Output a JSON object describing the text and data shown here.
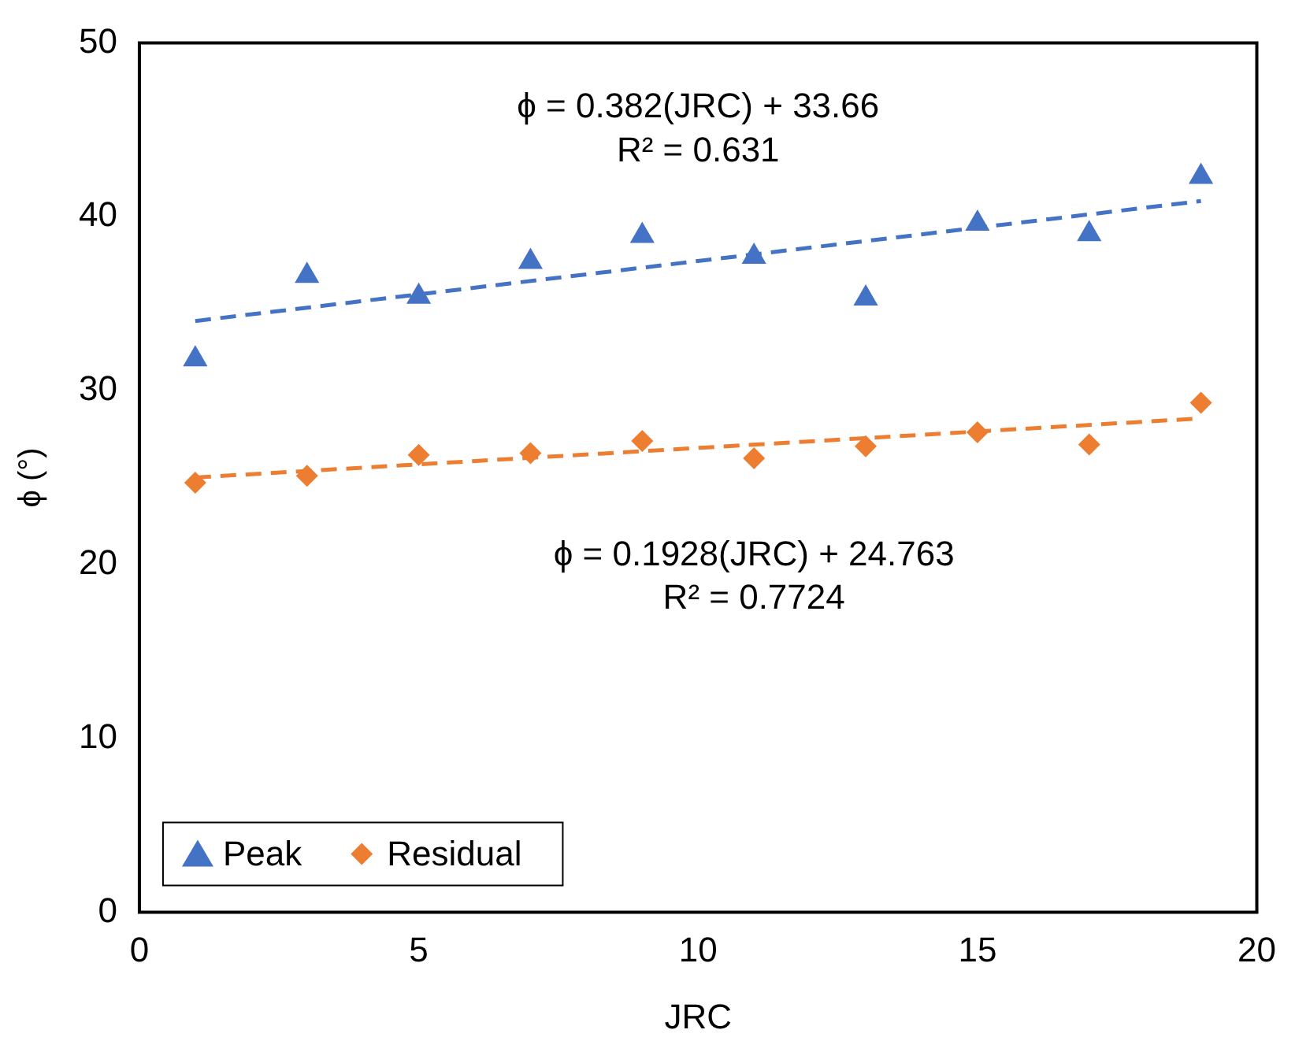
{
  "chart_data": {
    "type": "scatter",
    "xlabel": "JRC",
    "ylabel": "ϕ (°)",
    "xlim": [
      0,
      20
    ],
    "xticks": [
      0,
      5,
      10,
      15,
      20
    ],
    "ylim": [
      0,
      50
    ],
    "yticks": [
      0,
      10,
      20,
      30,
      40,
      50
    ],
    "grid": false,
    "legend": "bottom left",
    "series": [
      {
        "name": "Peak",
        "color": "#4472c4",
        "marker": "triangle",
        "x": [
          1,
          3,
          5,
          7,
          9,
          11,
          13,
          15,
          17,
          19
        ],
        "values": [
          31.8,
          36.6,
          35.4,
          37.4,
          38.9,
          37.7,
          35.3,
          39.6,
          39.0,
          42.3
        ]
      },
      {
        "name": "Residual",
        "color": "#ed7d31",
        "marker": "diamond",
        "x": [
          1,
          3,
          5,
          7,
          9,
          11,
          13,
          15,
          17,
          19
        ],
        "values": [
          24.7,
          25.1,
          26.3,
          26.4,
          27.1,
          26.1,
          26.8,
          27.6,
          26.9,
          29.3
        ]
      },
      {
        "type": "line",
        "color": "#4472c4",
        "marker": "none",
        "line_style": "dashed",
        "x": [
          1,
          19
        ],
        "values": [
          34.0,
          40.9
        ]
      },
      {
        "type": "line",
        "color": "#ed7d31",
        "marker": "none",
        "line_style": "dashed",
        "x": [
          1,
          19
        ],
        "values": [
          25.0,
          28.4
        ]
      }
    ],
    "annotations": [
      "ϕ = 0.382(JRC) + 33.66",
      "R² = 0.631",
      "ϕ = 0.1928(JRC) + 24.763",
      "R² = 0.7724"
    ]
  }
}
